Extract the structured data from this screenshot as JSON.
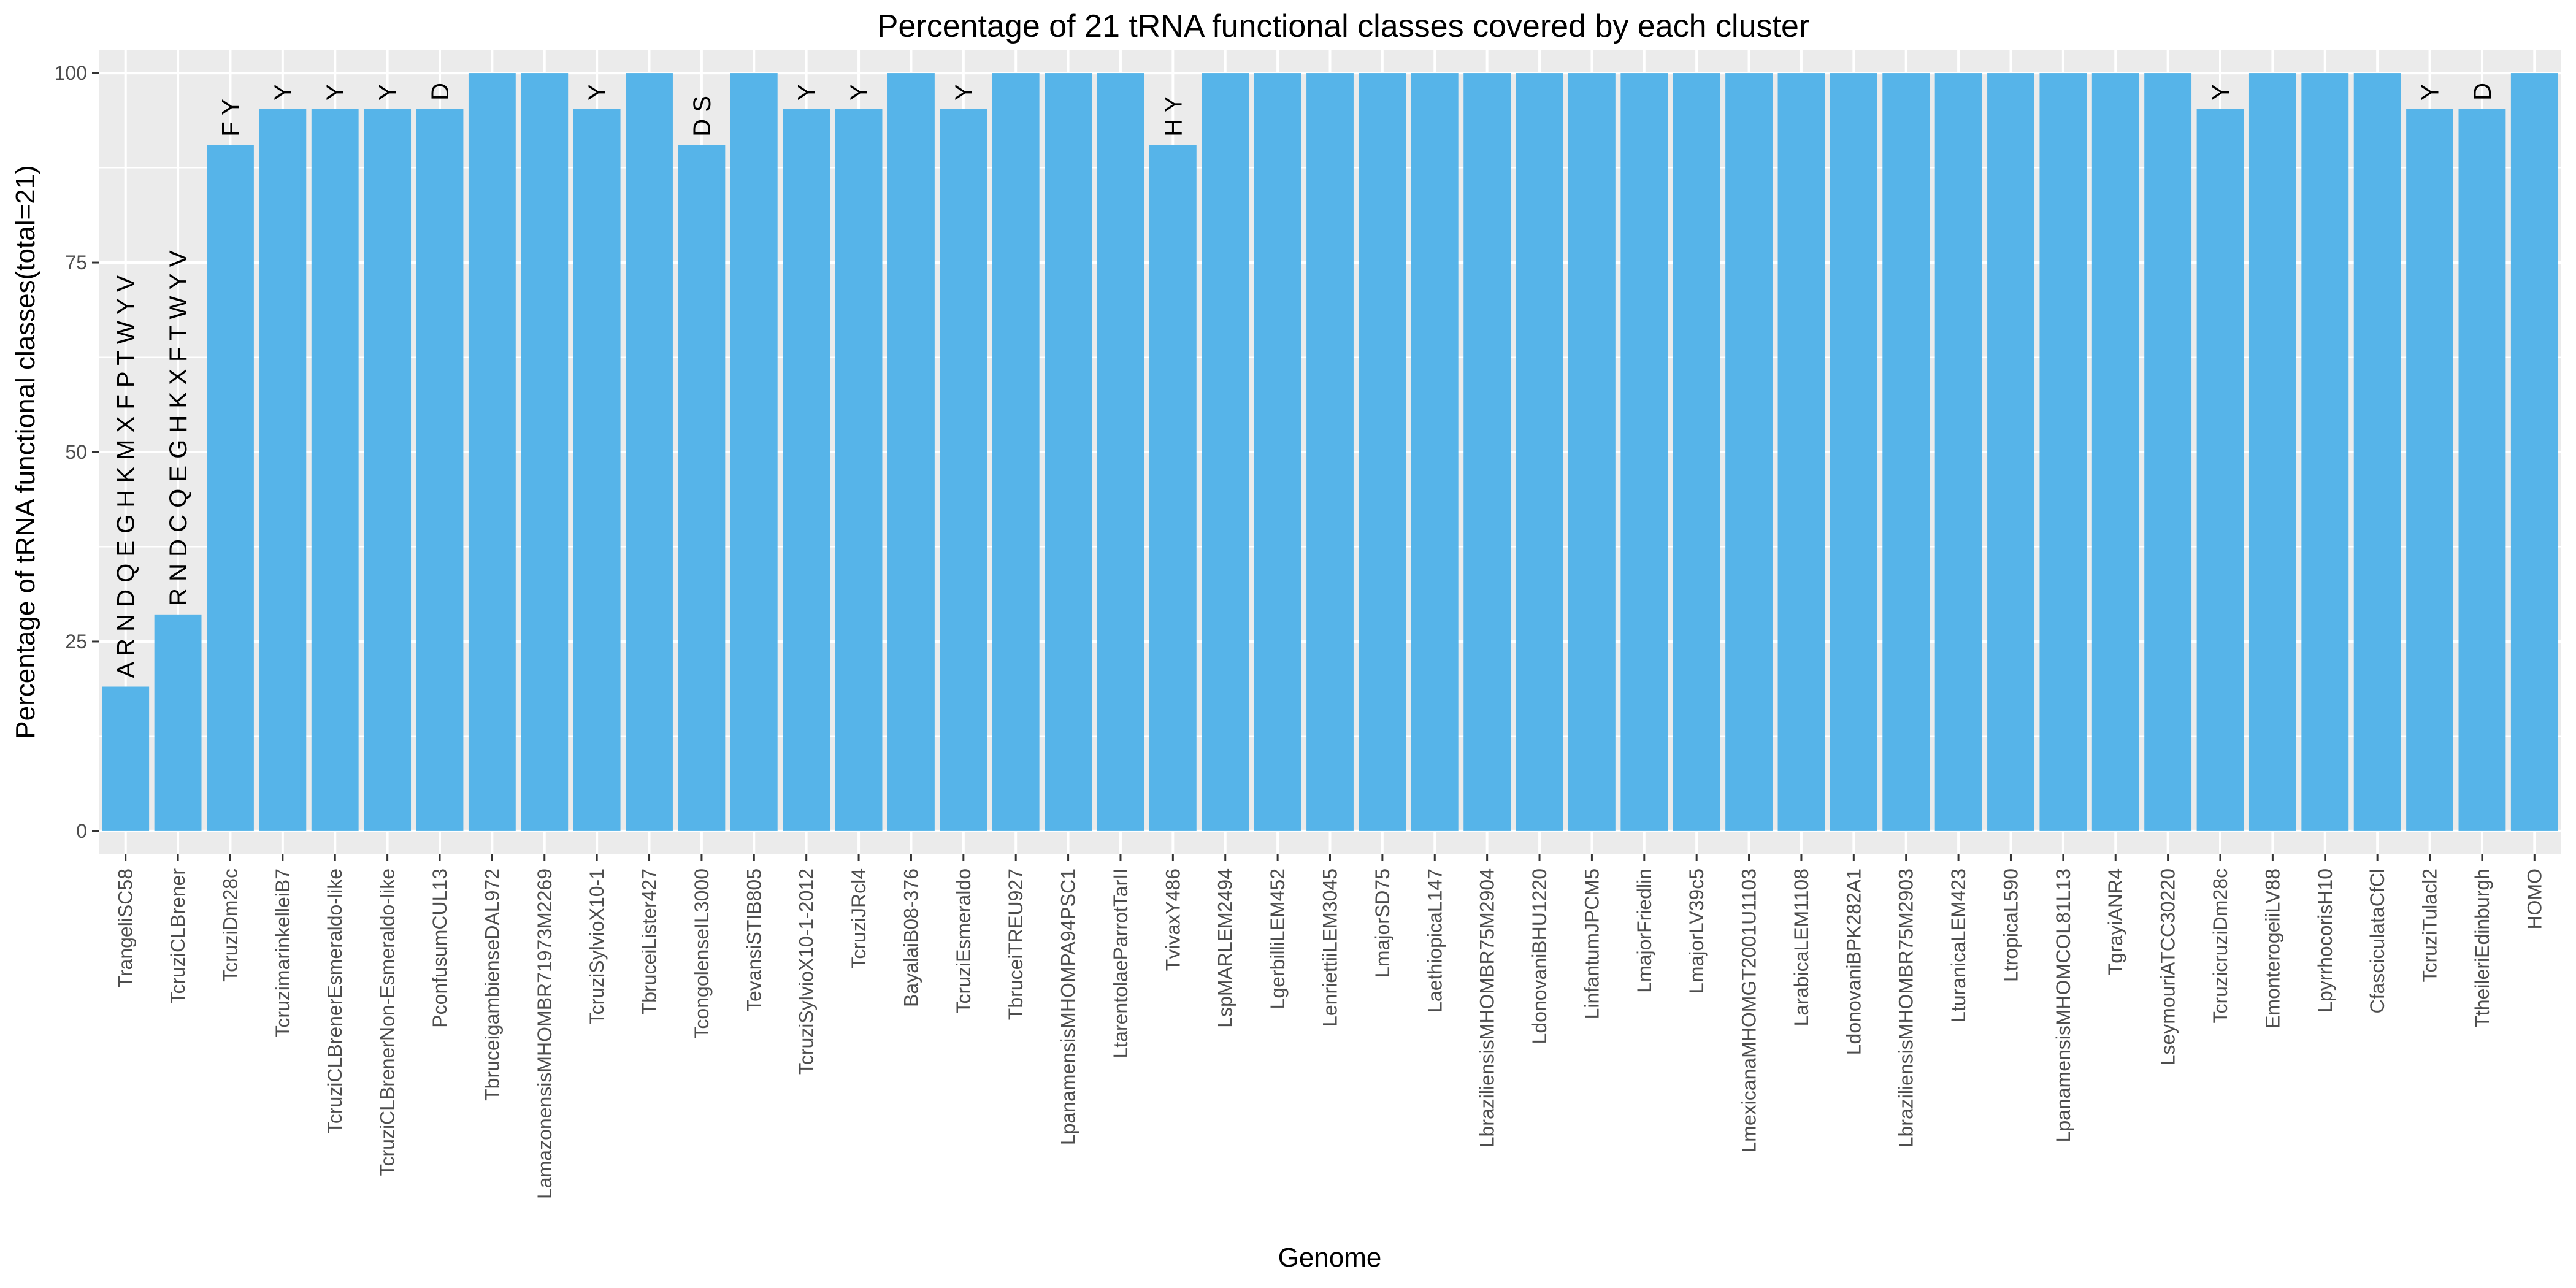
{
  "chart_data": {
    "type": "bar",
    "title": "Percentage of 21 tRNA functional classes covered by each cluster",
    "xlabel": "Genome",
    "ylabel": "Percentage of tRNA functional classes(total=21)",
    "ylim": [
      -3,
      103
    ],
    "yticks": [
      0,
      25,
      50,
      75,
      100
    ],
    "grid": true,
    "bar_color": "#56B4E9",
    "panel_color": "#EBEBEB",
    "categories": [
      "TrangeliSC58",
      "TcruziCLBrener",
      "TcruziDm28c",
      "TcruzimarinkelleiB7",
      "TcruziCLBrenerEsmeraldo-like",
      "TcruziCLBrenerNon-Esmeraldo-like",
      "PconfusumCUL13",
      "TbruceigambienseDAL972",
      "LamazonensisMHOMBR71973M2269",
      "TcruziSylvioX10-1",
      "TbruceiLister427",
      "TcongolenseIL3000",
      "TevansiSTIB805",
      "TcruziSylvioX10-1-2012",
      "TcruziJRcl4",
      "BayalaiB08-376",
      "TcruziEsmeraldo",
      "TbruceiTREU927",
      "LpanamensisMHOMPA94PSC1",
      "LtarentolaeParrotTarII",
      "TvivaxY486",
      "LspMARLEM2494",
      "LgerbilliLEM452",
      "LenriettiiLEM3045",
      "LmajorSD75",
      "LaethiopicaL147",
      "LbraziliensisMHOMBR75M2904",
      "LdonovaniBHU1220",
      "LinfantumJPCM5",
      "LmajorFriedlin",
      "LmajorLV39c5",
      "LmexicanaMHOMGT2001U1103",
      "LarabicaLEM1108",
      "LdonovaniBPK282A1",
      "LbraziliensisMHOMBR75M2903",
      "LturanicaLEM423",
      "LtropicaL590",
      "LpanamensisMHOMCOL81L13",
      "TgrayiANR4",
      "LseymouriATCC30220",
      "TcruzicruziDm28c",
      "EmonterogeiiLV88",
      "LpyrrhocorisH10",
      "CfasciculataCfCl",
      "TcruziTulacl2",
      "TtheileriEdinburgh",
      "HOMO"
    ],
    "values": [
      19.05,
      28.57,
      90.48,
      95.24,
      95.24,
      95.24,
      95.24,
      100,
      100,
      95.24,
      100,
      90.48,
      100,
      95.24,
      95.24,
      100,
      95.24,
      100,
      100,
      100,
      90.48,
      100,
      100,
      100,
      100,
      100,
      100,
      100,
      100,
      100,
      100,
      100,
      100,
      100,
      100,
      100,
      100,
      100,
      100,
      100,
      95.24,
      100,
      100,
      100,
      95.24,
      95.24,
      100
    ],
    "bar_labels": [
      "A R N D Q E G H K M X F P T W Y V",
      "R N D C Q E G H K X F T W Y V",
      "F Y",
      "Y",
      "Y",
      "Y",
      "D",
      "",
      "",
      "Y",
      "",
      "D S",
      "",
      "Y",
      "Y",
      "",
      "Y",
      "",
      "",
      "",
      "H Y",
      "",
      "",
      "",
      "",
      "",
      "",
      "",
      "",
      "",
      "",
      "",
      "",
      "",
      "",
      "",
      "",
      "",
      "",
      "",
      "Y",
      "",
      "",
      "",
      "Y",
      "D",
      ""
    ]
  }
}
